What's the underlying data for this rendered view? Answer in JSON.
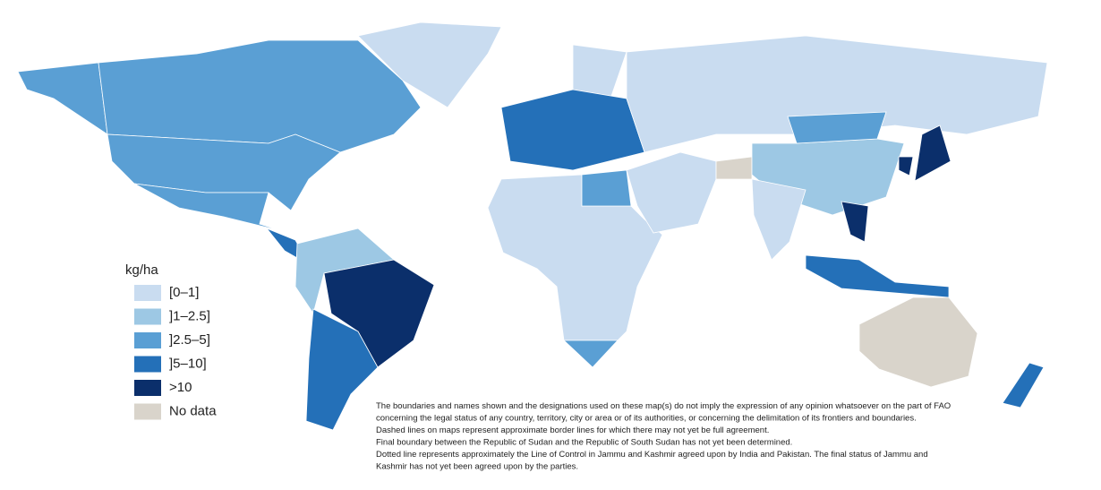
{
  "legend": {
    "title": "kg/ha",
    "items": [
      {
        "label": "[0–1]",
        "color": "#c9dcf0"
      },
      {
        "label": "]1–2.5]",
        "color": "#9dc8e4"
      },
      {
        "label": "]2.5–5]",
        "color": "#5a9fd4"
      },
      {
        "label": "]5–10]",
        "color": "#2470b8"
      },
      {
        "label": ">10",
        "color": "#0b2f6b"
      },
      {
        "label": "No data",
        "color": "#d9d4cb"
      }
    ]
  },
  "disclaimer": [
    "The boundaries and names shown and the designations used on these map(s) do not imply the expression of any opinion whatsoever on the part of FAO",
    "concerning the legal status of any country, territory, city or area or of its authorities, or concerning the delimitation of its frontiers and boundaries.",
    "Dashed lines on maps represent approximate border lines for which there may not yet be full agreement.",
    "Final boundary between the Republic of Sudan and the Republic of South Sudan has not yet been determined.",
    "Dotted line represents approximately the Line of Control in Jammu and Kashmir agreed upon by India and Pakistan. The final status of Jammu and",
    "Kashmir has not yet been agreed upon by the parties."
  ]
}
